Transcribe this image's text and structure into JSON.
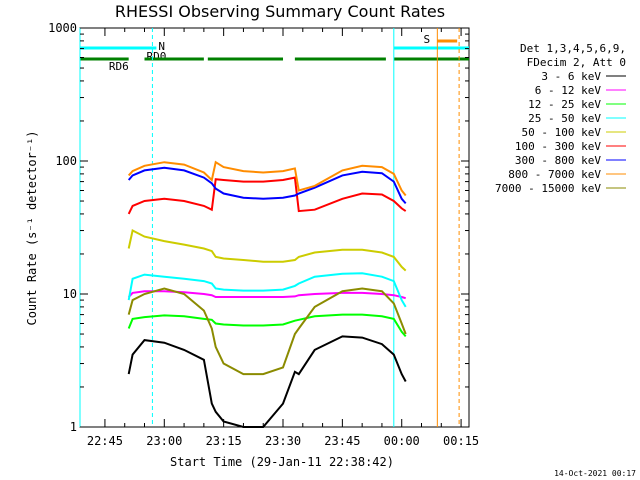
{
  "chart_data": {
    "type": "line",
    "title": "RHESSI Observing Summary Count Rates",
    "xlabel": "Start Time (29-Jan-11 22:38:42)",
    "ylabel": "Count Rate (s⁻¹ detector⁻¹)",
    "y_scale": "log",
    "ylim": [
      1,
      1000
    ],
    "x_range": [
      "22:38:42",
      "00:17:00"
    ],
    "x_ticks": [
      "22:45",
      "23:00",
      "23:15",
      "23:30",
      "23:45",
      "00:00",
      "00:15"
    ],
    "y_ticks": [
      "1",
      "10",
      "100",
      "1000"
    ],
    "grid": false,
    "legend_position": "right",
    "legend_header": [
      "Det 1,3,4,5,6,9,",
      "FDecim 2, Att 0"
    ],
    "data_window": [
      "22:51:00",
      "00:01:40"
    ],
    "sun_gaps": [
      [
        "23:12:00",
        "23:13:00"
      ],
      [
        "23:33:00",
        "23:34:00"
      ]
    ],
    "series": [
      {
        "name": "3 - 6 keV",
        "color": "#000000",
        "times": [
          "22:51",
          "22:52",
          "22:55",
          "23:00",
          "23:05",
          "23:10",
          "23:12",
          "23:13",
          "23:15",
          "23:20",
          "23:25",
          "23:30",
          "23:33",
          "23:34",
          "23:38",
          "23:45",
          "23:50",
          "23:55",
          "23:58",
          "00:00",
          "00:01"
        ],
        "values": [
          2.5,
          3.5,
          4.5,
          4.3,
          3.8,
          3.2,
          1.5,
          1.3,
          1.1,
          1.0,
          1.0,
          1.5,
          2.6,
          2.5,
          3.8,
          4.8,
          4.7,
          4.2,
          3.5,
          2.5,
          2.2
        ]
      },
      {
        "name": "6 - 12 keV",
        "color": "#ff00ff",
        "times": [
          "22:51",
          "22:52",
          "22:55",
          "23:00",
          "23:05",
          "23:10",
          "23:12",
          "23:13",
          "23:15",
          "23:20",
          "23:25",
          "23:30",
          "23:33",
          "23:34",
          "23:38",
          "23:45",
          "23:50",
          "23:55",
          "23:58",
          "00:00",
          "00:01"
        ],
        "values": [
          9.5,
          10.2,
          10.5,
          10.5,
          10.3,
          10.0,
          9.8,
          9.5,
          9.5,
          9.5,
          9.5,
          9.5,
          9.6,
          9.8,
          10.0,
          10.2,
          10.2,
          10.0,
          9.8,
          9.5,
          9.3
        ]
      },
      {
        "name": "12 - 25 keV",
        "color": "#00ff00",
        "times": [
          "22:51",
          "22:52",
          "22:55",
          "23:00",
          "23:05",
          "23:10",
          "23:12",
          "23:13",
          "23:15",
          "23:20",
          "23:25",
          "23:30",
          "23:33",
          "23:34",
          "23:38",
          "23:45",
          "23:50",
          "23:55",
          "23:58",
          "00:00",
          "00:01"
        ],
        "values": [
          5.5,
          6.5,
          6.7,
          6.9,
          6.8,
          6.5,
          6.4,
          6.0,
          5.9,
          5.8,
          5.8,
          5.9,
          6.3,
          6.4,
          6.8,
          7.0,
          7.0,
          6.8,
          6.5,
          5.2,
          4.8
        ]
      },
      {
        "name": "25 - 50 keV",
        "color": "#00ffff",
        "times": [
          "22:51",
          "22:52",
          "22:55",
          "23:00",
          "23:05",
          "23:10",
          "23:12",
          "23:13",
          "23:15",
          "23:20",
          "23:25",
          "23:30",
          "23:33",
          "23:34",
          "23:38",
          "23:45",
          "23:50",
          "23:55",
          "23:58",
          "00:00",
          "00:01"
        ],
        "values": [
          9,
          13,
          14,
          13.5,
          13,
          12.5,
          12,
          11,
          10.8,
          10.6,
          10.6,
          10.8,
          11.5,
          12,
          13.5,
          14.2,
          14.3,
          13.5,
          12.5,
          9,
          8
        ]
      },
      {
        "name": "50 - 100 keV",
        "color": "#cccc00",
        "times": [
          "22:51",
          "22:52",
          "22:55",
          "23:00",
          "23:05",
          "23:10",
          "23:12",
          "23:13",
          "23:15",
          "23:20",
          "23:25",
          "23:30",
          "23:33",
          "23:34",
          "23:38",
          "23:45",
          "23:50",
          "23:55",
          "23:58",
          "00:00",
          "00:01"
        ],
        "values": [
          22,
          30,
          27,
          25,
          23.5,
          22,
          21,
          19,
          18.5,
          18,
          17.5,
          17.5,
          18,
          19,
          20.5,
          21.5,
          21.5,
          20.5,
          19,
          16,
          15
        ]
      },
      {
        "name": "100 - 300 keV",
        "color": "#ff0000",
        "times": [
          "22:51",
          "22:52",
          "22:55",
          "23:00",
          "23:05",
          "23:10",
          "23:12",
          "23:13",
          "23:15",
          "23:20",
          "23:25",
          "23:30",
          "23:33",
          "23:34",
          "23:38",
          "23:45",
          "23:50",
          "23:55",
          "23:58",
          "00:00",
          "00:01"
        ],
        "values": [
          40,
          46,
          50,
          52,
          50,
          46,
          43,
          73,
          72,
          70,
          70,
          72,
          75,
          42,
          43,
          52,
          57,
          56,
          50,
          44,
          42
        ]
      },
      {
        "name": "300 - 800 keV",
        "color": "#0000ff",
        "times": [
          "22:51",
          "22:52",
          "22:55",
          "23:00",
          "23:05",
          "23:10",
          "23:12",
          "23:13",
          "23:15",
          "23:20",
          "23:25",
          "23:30",
          "23:33",
          "23:34",
          "23:38",
          "23:45",
          "23:50",
          "23:55",
          "23:58",
          "00:00",
          "00:01"
        ],
        "values": [
          72,
          78,
          85,
          89,
          85,
          75,
          68,
          62,
          57,
          53,
          52,
          53,
          55,
          57,
          63,
          78,
          83,
          81,
          70,
          52,
          48
        ]
      },
      {
        "name": "800 - 7000 keV",
        "color": "#ff8c00",
        "times": [
          "22:51",
          "22:52",
          "22:55",
          "23:00",
          "23:05",
          "23:10",
          "23:12",
          "23:13",
          "23:15",
          "23:20",
          "23:25",
          "23:30",
          "23:33",
          "23:34",
          "23:38",
          "23:45",
          "23:50",
          "23:55",
          "23:58",
          "00:00",
          "00:01"
        ],
        "values": [
          78,
          84,
          92,
          98,
          94,
          82,
          72,
          98,
          90,
          84,
          82,
          84,
          88,
          60,
          65,
          85,
          92,
          90,
          80,
          60,
          55
        ]
      },
      {
        "name": "7000 - 15000 keV",
        "color": "#8b8b00",
        "times": [
          "22:51",
          "22:52",
          "22:55",
          "23:00",
          "23:05",
          "23:10",
          "23:12",
          "23:13",
          "23:15",
          "23:20",
          "23:25",
          "23:30",
          "23:33",
          "23:34",
          "23:38",
          "23:45",
          "23:50",
          "23:55",
          "23:58",
          "00:00",
          "00:01"
        ],
        "values": [
          7,
          9,
          10,
          11,
          10,
          7.5,
          5.5,
          4,
          3,
          2.5,
          2.5,
          2.8,
          5,
          5.5,
          8,
          10.5,
          11,
          10.5,
          8.5,
          6,
          5
        ]
      }
    ],
    "flag_bars": [
      {
        "name": "N",
        "color": "#00ffff",
        "segments": [
          [
            "22:38:42",
            "22:58:00"
          ],
          [
            "23:58:00",
            "00:17:00"
          ]
        ],
        "label_at": "22:58:00"
      },
      {
        "name": "RD0",
        "color": "#00ffff",
        "segments": [],
        "label_at": "22:55:00"
      },
      {
        "name": "RD6",
        "color": "#008000",
        "segments": [
          [
            "22:38:42",
            "22:51:00"
          ],
          [
            "22:55:00",
            "23:10:00"
          ],
          [
            "23:11:00",
            "23:30:00"
          ],
          [
            "23:33:00",
            "23:56:00"
          ],
          [
            "23:58:00",
            "00:17:00"
          ]
        ],
        "label_at": "22:45:30"
      },
      {
        "name": "S",
        "color": "#ff8c00",
        "segments": [
          [
            "00:09:00",
            "00:14:00"
          ]
        ],
        "label_at": "00:05:00"
      }
    ],
    "vertical_markers": [
      {
        "time": "22:38:42",
        "color": "#00ffff",
        "style": "solid"
      },
      {
        "time": "22:57:00",
        "color": "#00ffff",
        "style": "dashed"
      },
      {
        "time": "23:58:00",
        "color": "#00ffff",
        "style": "solid"
      },
      {
        "time": "00:09:00",
        "color": "#ff8c00",
        "style": "solid"
      },
      {
        "time": "00:14:30",
        "color": "#ff8c00",
        "style": "dashed"
      }
    ]
  },
  "footer": {
    "timestamp": "14-Oct-2021 00:17"
  }
}
